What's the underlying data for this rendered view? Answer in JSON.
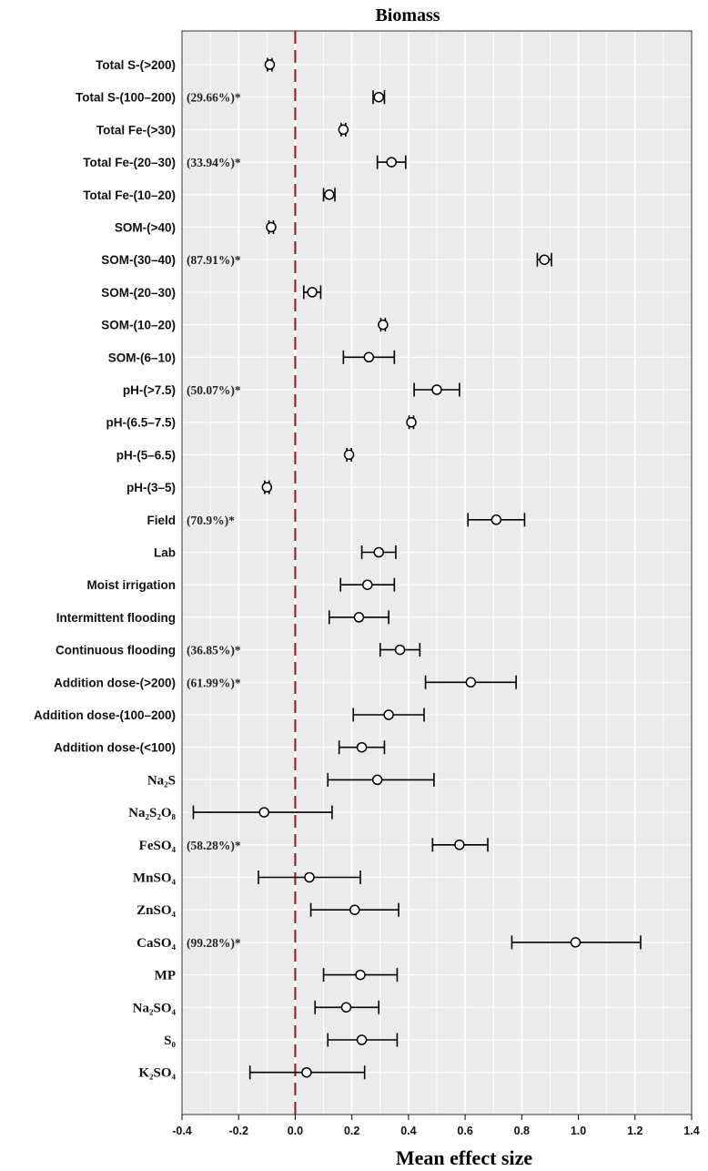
{
  "chart_data": {
    "type": "scatter",
    "title": "Biomass",
    "xlabel": "Mean effect size",
    "ylabel": "",
    "xlim": [
      -0.4,
      1.4
    ],
    "xticks": [
      "-0.4",
      "-0.2",
      "0.0",
      "0.2",
      "0.4",
      "0.6",
      "0.8",
      "1.0",
      "1.2",
      "1.4"
    ],
    "reference_line": 0,
    "grid": true,
    "colors": {
      "background": "#ebebeb",
      "grid": "#ffffff",
      "reference": "#8b1a1a",
      "marker_fill": "#ffffff",
      "marker_edge": "#000000"
    },
    "rows": [
      {
        "label": "Total S-(>200)",
        "mean": -0.09,
        "lo": -0.098,
        "hi": -0.082,
        "annotation": ""
      },
      {
        "label": "Total S-(100–200)",
        "mean": 0.295,
        "lo": 0.275,
        "hi": 0.315,
        "annotation": "(29.66%)*"
      },
      {
        "label": "Total Fe-(>30)",
        "mean": 0.17,
        "lo": 0.162,
        "hi": 0.178,
        "annotation": ""
      },
      {
        "label": "Total Fe-(20–30)",
        "mean": 0.34,
        "lo": 0.29,
        "hi": 0.39,
        "annotation": "(33.94%)*"
      },
      {
        "label": "Total Fe-(10–20)",
        "mean": 0.12,
        "lo": 0.1,
        "hi": 0.14,
        "annotation": ""
      },
      {
        "label": "SOM-(>40)",
        "mean": -0.085,
        "lo": -0.093,
        "hi": -0.077,
        "annotation": ""
      },
      {
        "label": "SOM-(30–40)",
        "mean": 0.88,
        "lo": 0.855,
        "hi": 0.905,
        "annotation": "(87.91%)*"
      },
      {
        "label": "SOM-(20–30)",
        "mean": 0.06,
        "lo": 0.03,
        "hi": 0.09,
        "annotation": ""
      },
      {
        "label": "SOM-(10–20)",
        "mean": 0.31,
        "lo": 0.302,
        "hi": 0.318,
        "annotation": ""
      },
      {
        "label": "SOM-(6–10)",
        "mean": 0.26,
        "lo": 0.17,
        "hi": 0.35,
        "annotation": ""
      },
      {
        "label": "pH-(>7.5)",
        "mean": 0.5,
        "lo": 0.42,
        "hi": 0.58,
        "annotation": "(50.07%)*"
      },
      {
        "label": "pH-(6.5–7.5)",
        "mean": 0.41,
        "lo": 0.402,
        "hi": 0.418,
        "annotation": ""
      },
      {
        "label": "pH-(5–6.5)",
        "mean": 0.19,
        "lo": 0.182,
        "hi": 0.198,
        "annotation": ""
      },
      {
        "label": "pH-(3–5)",
        "mean": -0.1,
        "lo": -0.108,
        "hi": -0.092,
        "annotation": ""
      },
      {
        "label": "Field",
        "mean": 0.71,
        "lo": 0.61,
        "hi": 0.81,
        "annotation": "(70.9%)*"
      },
      {
        "label": "Lab",
        "mean": 0.295,
        "lo": 0.235,
        "hi": 0.355,
        "annotation": ""
      },
      {
        "label": "Moist irrigation",
        "mean": 0.255,
        "lo": 0.16,
        "hi": 0.35,
        "annotation": ""
      },
      {
        "label": "Intermittent flooding",
        "mean": 0.225,
        "lo": 0.12,
        "hi": 0.33,
        "annotation": ""
      },
      {
        "label": "Continuous flooding",
        "mean": 0.37,
        "lo": 0.3,
        "hi": 0.44,
        "annotation": "(36.85%)*"
      },
      {
        "label": "Addition dose-(>200)",
        "mean": 0.62,
        "lo": 0.46,
        "hi": 0.78,
        "annotation": "(61.99%)*"
      },
      {
        "label": "Addition dose-(100–200)",
        "mean": 0.33,
        "lo": 0.205,
        "hi": 0.455,
        "annotation": ""
      },
      {
        "label": "Addition dose-(<100)",
        "mean": 0.235,
        "lo": 0.155,
        "hi": 0.315,
        "annotation": ""
      },
      {
        "label": "Na₂S",
        "mean": 0.29,
        "lo": 0.115,
        "hi": 0.49,
        "annotation": ""
      },
      {
        "label": "Na₂S₂O₈",
        "mean": -0.11,
        "lo": -0.36,
        "hi": 0.13,
        "annotation": ""
      },
      {
        "label": "FeSO₄",
        "mean": 0.58,
        "lo": 0.485,
        "hi": 0.68,
        "annotation": "(58.28%)*"
      },
      {
        "label": "MnSO₄",
        "mean": 0.05,
        "lo": -0.13,
        "hi": 0.23,
        "annotation": ""
      },
      {
        "label": "ZnSO₄",
        "mean": 0.21,
        "lo": 0.055,
        "hi": 0.365,
        "annotation": ""
      },
      {
        "label": "CaSO₄",
        "mean": 0.99,
        "lo": 0.765,
        "hi": 1.22,
        "annotation": "(99.28%)*"
      },
      {
        "label": "MP",
        "mean": 0.23,
        "lo": 0.1,
        "hi": 0.36,
        "annotation": ""
      },
      {
        "label": "Na₂SO₄",
        "mean": 0.18,
        "lo": 0.07,
        "hi": 0.295,
        "annotation": ""
      },
      {
        "label": "S₀",
        "mean": 0.235,
        "lo": 0.115,
        "hi": 0.36,
        "annotation": ""
      },
      {
        "label": "K₂SO₄",
        "mean": 0.04,
        "lo": -0.16,
        "hi": 0.245,
        "annotation": ""
      }
    ]
  }
}
